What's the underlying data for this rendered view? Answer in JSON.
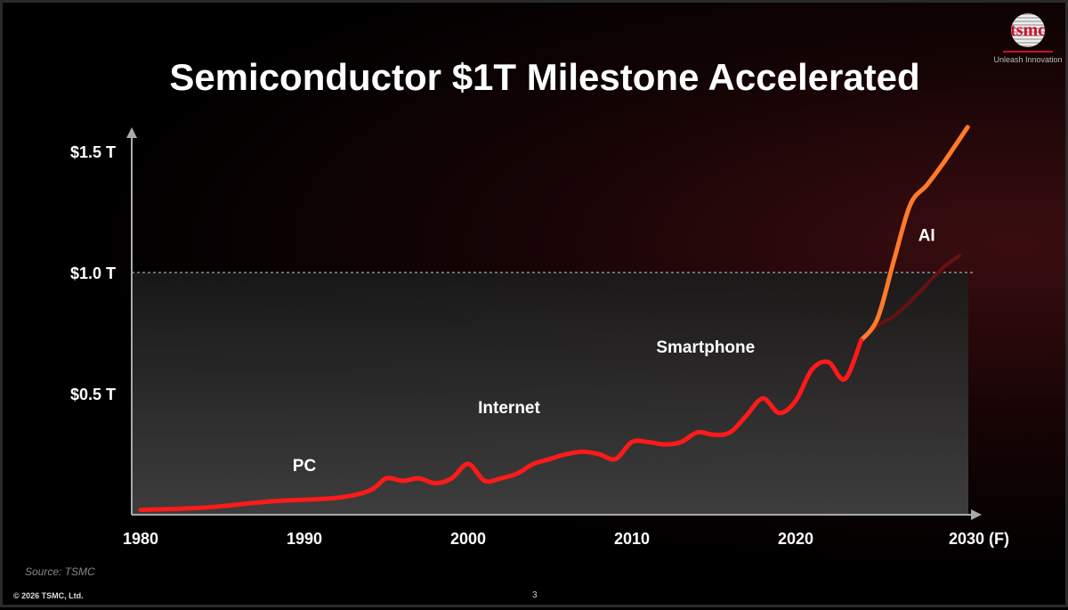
{
  "title": "Semiconductor $1T Milestone Accelerated",
  "logo": {
    "text": "tsmc",
    "tagline": "Unleash Innovation"
  },
  "source": "Source: TSMC",
  "copyright": "© 2026 TSMC, Ltd.",
  "page_number": "3",
  "colors": {
    "historical": "#ff1a1a",
    "ai": "#ff7a2a",
    "baseline_forecast": "#6a1010",
    "threshold": "#cccccc"
  },
  "chart_data": {
    "type": "line",
    "title": "Semiconductor $1T Milestone Accelerated",
    "xlim": [
      1980,
      2030
    ],
    "ylim": [
      0,
      1.6
    ],
    "x_ticks": [
      1980,
      1990,
      2000,
      2010,
      2020,
      2030
    ],
    "x_tick_labels": [
      "1980",
      "1990",
      "2000",
      "2010",
      "2020",
      "2030 (F)"
    ],
    "y_ticks": [
      0.5,
      1.0,
      1.5
    ],
    "y_tick_labels": [
      "$0.5 T",
      "$1.0 T",
      "$1.5 T"
    ],
    "threshold": 1.0,
    "grid": false,
    "series": [
      {
        "key": "historical",
        "x": [
          1980,
          1984,
          1988,
          1992,
          1994,
          1995,
          1996,
          1997,
          1998,
          1999,
          2000,
          2001,
          2002,
          2003,
          2004,
          2005,
          2006,
          2007,
          2008,
          2009,
          2010,
          2011,
          2012,
          2013,
          2014,
          2015,
          2016,
          2017,
          2018,
          2019,
          2020,
          2021,
          2022,
          2023,
          2024
        ],
        "y": [
          0.02,
          0.03,
          0.055,
          0.07,
          0.1,
          0.15,
          0.14,
          0.15,
          0.13,
          0.15,
          0.21,
          0.14,
          0.15,
          0.17,
          0.21,
          0.23,
          0.25,
          0.26,
          0.25,
          0.23,
          0.3,
          0.3,
          0.29,
          0.3,
          0.34,
          0.33,
          0.34,
          0.41,
          0.48,
          0.42,
          0.47,
          0.6,
          0.63,
          0.56,
          0.72
        ]
      },
      {
        "key": "ai",
        "name": "AI",
        "x": [
          2024,
          2025,
          2026,
          2027,
          2028,
          2029,
          2030.5
        ],
        "y": [
          0.72,
          0.81,
          1.05,
          1.28,
          1.36,
          1.45,
          1.6
        ]
      },
      {
        "key": "baseline_forecast",
        "x": [
          2024,
          2025,
          2026,
          2027,
          2028,
          2029,
          2030
        ],
        "y": [
          0.72,
          0.78,
          0.82,
          0.88,
          0.95,
          1.02,
          1.07
        ]
      }
    ],
    "annotations": [
      {
        "text": "PC",
        "x": 1990,
        "y": 0.18
      },
      {
        "text": "Internet",
        "x": 2002.5,
        "y": 0.42
      },
      {
        "text": "Smartphone",
        "x": 2014.5,
        "y": 0.67
      },
      {
        "text": "AI",
        "x": 2028,
        "y": 1.13
      }
    ]
  }
}
